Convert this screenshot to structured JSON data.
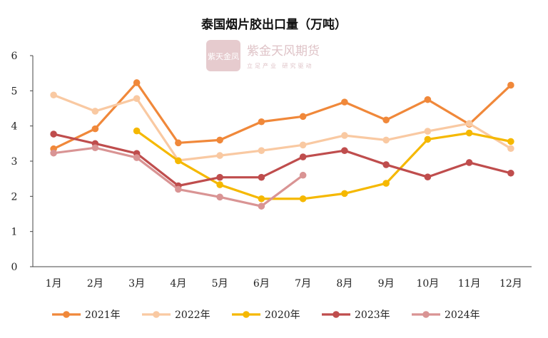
{
  "chart_data": {
    "type": "line",
    "title": "泰国烟片胶出口量（万吨）",
    "xlabel": "",
    "ylabel": "",
    "categories": [
      "1月",
      "2月",
      "3月",
      "4月",
      "5月",
      "6月",
      "7月",
      "8月",
      "9月",
      "10月",
      "11月",
      "12月"
    ],
    "ylim": [
      0,
      6
    ],
    "yticks": [
      "0",
      "1",
      "2",
      "3",
      "4",
      "5",
      "6"
    ],
    "grid": false,
    "legend_position": "bottom",
    "series": [
      {
        "name": "2021年",
        "color": "#f0883a",
        "values": [
          3.35,
          3.92,
          5.23,
          3.52,
          3.6,
          4.12,
          4.27,
          4.68,
          4.17,
          4.75,
          4.05,
          5.16
        ]
      },
      {
        "name": "2022年",
        "color": "#f9c9a2",
        "values": [
          4.88,
          4.42,
          4.78,
          3.02,
          3.16,
          3.3,
          3.46,
          3.73,
          3.6,
          3.85,
          4.07,
          3.36
        ]
      },
      {
        "name": "2020年",
        "color": "#f5b800",
        "values": [
          null,
          null,
          3.86,
          3.01,
          2.33,
          1.93,
          1.93,
          2.08,
          2.37,
          3.62,
          3.8,
          3.56
        ]
      },
      {
        "name": "2023年",
        "color": "#bf4d4d",
        "values": [
          3.77,
          3.5,
          3.22,
          2.3,
          2.54,
          2.54,
          3.12,
          3.3,
          2.9,
          2.55,
          2.96,
          2.66
        ]
      },
      {
        "name": "2024年",
        "color": "#d99494",
        "values": [
          3.23,
          3.38,
          3.1,
          2.2,
          1.98,
          1.72,
          2.6,
          null,
          null,
          null,
          null,
          null
        ]
      }
    ]
  },
  "watermark": {
    "seal_text": "紫天金凤",
    "name": "紫金天风期货",
    "slogan": "立足产业 研究驱动"
  }
}
